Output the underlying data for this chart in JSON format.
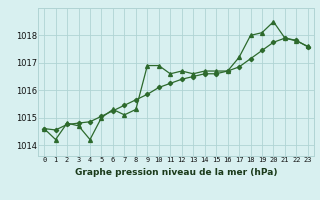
{
  "line1_x": [
    0,
    1,
    2,
    3,
    4,
    5,
    6,
    7,
    8,
    9,
    10,
    11,
    12,
    13,
    14,
    15,
    16,
    17,
    18,
    19,
    20,
    21,
    22,
    23
  ],
  "line1_y": [
    1014.6,
    1014.2,
    1014.8,
    1014.7,
    1014.2,
    1015.0,
    1015.3,
    1015.1,
    1015.3,
    1016.9,
    1016.9,
    1016.6,
    1016.7,
    1016.6,
    1016.7,
    1016.7,
    1016.7,
    1017.2,
    1018.0,
    1018.1,
    1018.5,
    1017.9,
    1017.8,
    1017.6
  ],
  "line2_x": [
    0,
    1,
    2,
    3,
    4,
    5,
    6,
    7,
    8,
    9,
    10,
    11,
    12,
    13,
    14,
    15,
    16,
    17,
    18,
    19,
    20,
    21,
    22,
    23
  ],
  "line2_y": [
    1014.6,
    1014.55,
    1014.75,
    1014.8,
    1014.85,
    1015.05,
    1015.25,
    1015.45,
    1015.65,
    1015.85,
    1016.1,
    1016.25,
    1016.4,
    1016.5,
    1016.6,
    1016.6,
    1016.7,
    1016.85,
    1017.15,
    1017.45,
    1017.75,
    1017.9,
    1017.82,
    1017.58
  ],
  "line_color": "#2d6a2d",
  "bg_color": "#d8f0f0",
  "grid_color": "#b0d4d4",
  "xlabel": "Graphe pression niveau de la mer (hPa)",
  "ylim": [
    1013.6,
    1019.0
  ],
  "xlim": [
    -0.5,
    23.5
  ],
  "yticks": [
    1014,
    1015,
    1016,
    1017,
    1018
  ],
  "xticks": [
    0,
    1,
    2,
    3,
    4,
    5,
    6,
    7,
    8,
    9,
    10,
    11,
    12,
    13,
    14,
    15,
    16,
    17,
    18,
    19,
    20,
    21,
    22,
    23
  ],
  "tick_fontsize": 5.0,
  "ylabel_fontsize": 6.0,
  "xlabel_fontsize": 6.5
}
